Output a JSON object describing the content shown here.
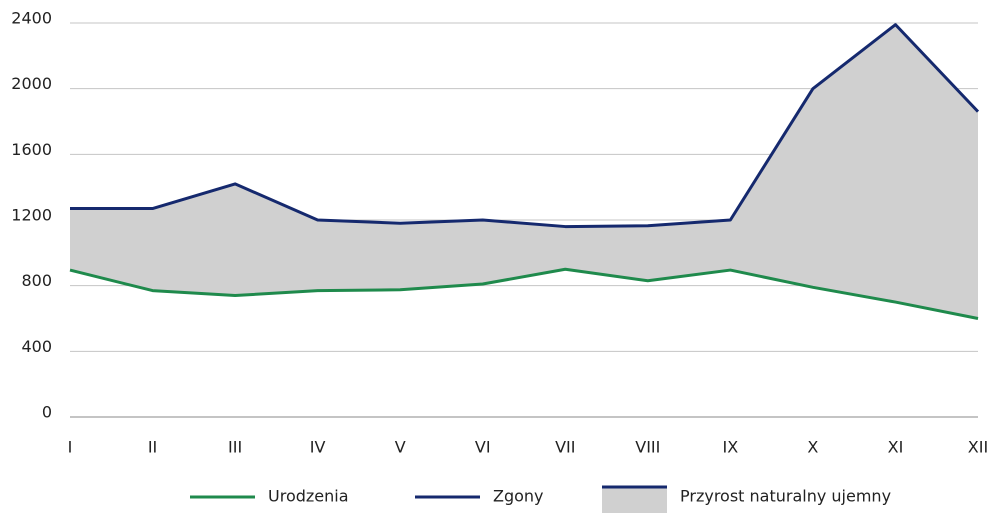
{
  "chart_data": {
    "type": "line",
    "categories": [
      "I",
      "II",
      "III",
      "IV",
      "V",
      "VI",
      "VII",
      "VIII",
      "IX",
      "X",
      "XI",
      "XII"
    ],
    "series": [
      {
        "name": "Urodzenia",
        "color": "#1f8a4c",
        "values": [
          895,
          770,
          740,
          770,
          775,
          810,
          900,
          830,
          895,
          790,
          700,
          600
        ]
      },
      {
        "name": "Zgony",
        "color": "#15296e",
        "values": [
          1270,
          1270,
          1420,
          1200,
          1180,
          1200,
          1160,
          1165,
          1200,
          2000,
          2390,
          1860
        ]
      }
    ],
    "area": {
      "name": "Przyrost naturalny ujemny",
      "color": "#d0d0d0"
    },
    "ylim": [
      0,
      2400
    ],
    "yticks": [
      0,
      400,
      800,
      1200,
      1600,
      2000,
      2400
    ],
    "grid": true
  }
}
